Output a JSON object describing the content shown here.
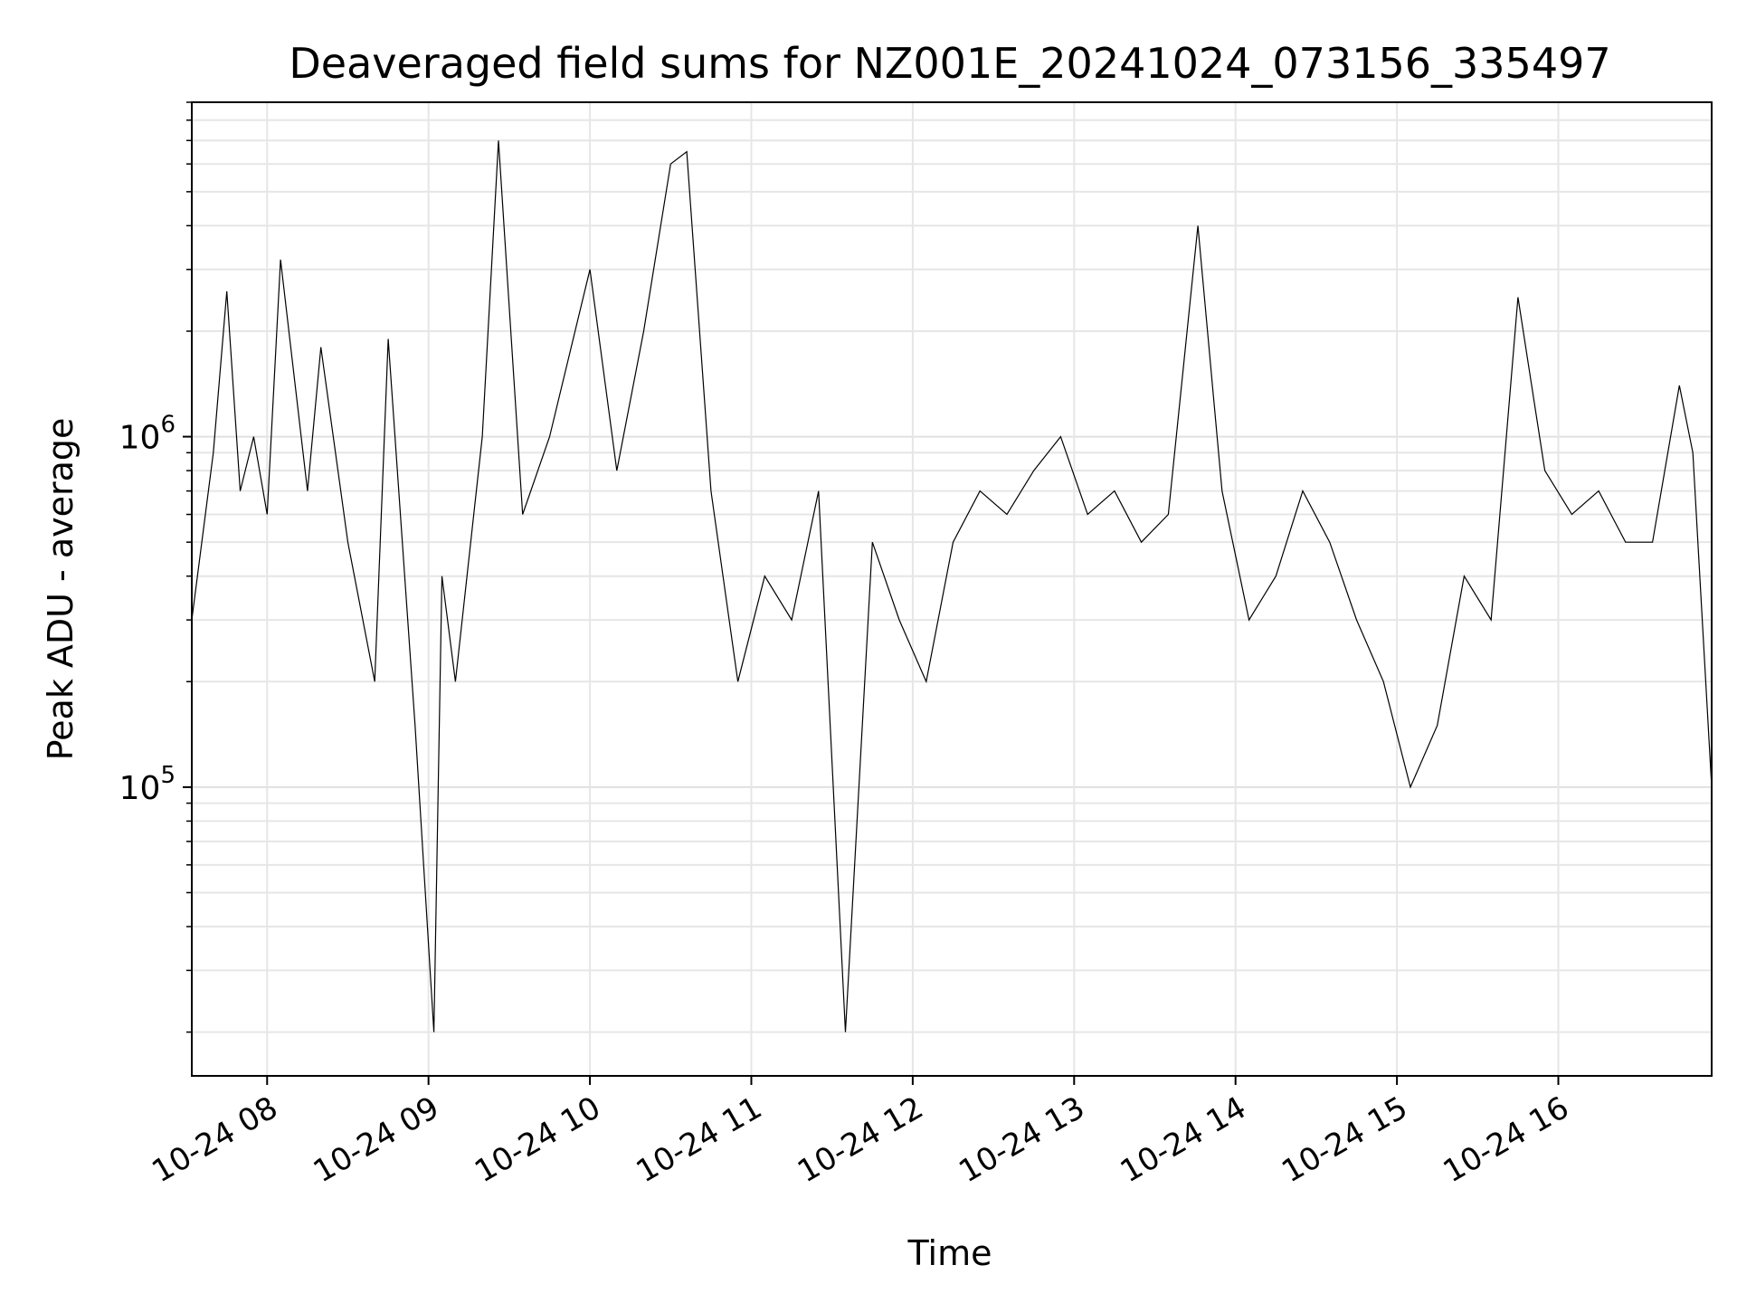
{
  "chart_data": {
    "type": "line",
    "title": "Deaveraged field sums for NZ001E_20241024_073156_335497",
    "xlabel": "Time",
    "ylabel": "Peak ADU - average",
    "yscale": "log",
    "ylim": [
      15000,
      9000000
    ],
    "xlim": [
      "2024-10-24T07:32",
      "2024-10-24T16:57"
    ],
    "grid": true,
    "line_color": "#000000",
    "x_ticks": [
      {
        "t": "2024-10-24T08:00",
        "label": "10-24 08"
      },
      {
        "t": "2024-10-24T09:00",
        "label": "10-24 09"
      },
      {
        "t": "2024-10-24T10:00",
        "label": "10-24 10"
      },
      {
        "t": "2024-10-24T11:00",
        "label": "10-24 11"
      },
      {
        "t": "2024-10-24T12:00",
        "label": "10-24 12"
      },
      {
        "t": "2024-10-24T13:00",
        "label": "10-24 13"
      },
      {
        "t": "2024-10-24T14:00",
        "label": "10-24 14"
      },
      {
        "t": "2024-10-24T15:00",
        "label": "10-24 15"
      },
      {
        "t": "2024-10-24T16:00",
        "label": "10-24 16"
      }
    ],
    "y_ticks": [
      {
        "value": 100000,
        "base": "10",
        "exp": "5"
      },
      {
        "value": 1000000,
        "base": "10",
        "exp": "6"
      }
    ],
    "series": [
      {
        "x": [
          "2024-10-24T07:32",
          "2024-10-24T07:40",
          "2024-10-24T07:45",
          "2024-10-24T07:50",
          "2024-10-24T07:55",
          "2024-10-24T08:00",
          "2024-10-24T08:05",
          "2024-10-24T08:15",
          "2024-10-24T08:20",
          "2024-10-24T08:30",
          "2024-10-24T08:40",
          "2024-10-24T08:45",
          "2024-10-24T08:55",
          "2024-10-24T09:02",
          "2024-10-24T09:05",
          "2024-10-24T09:10",
          "2024-10-24T09:20",
          "2024-10-24T09:26",
          "2024-10-24T09:35",
          "2024-10-24T09:45",
          "2024-10-24T10:00",
          "2024-10-24T10:10",
          "2024-10-24T10:20",
          "2024-10-24T10:30",
          "2024-10-24T10:36",
          "2024-10-24T10:45",
          "2024-10-24T10:55",
          "2024-10-24T11:05",
          "2024-10-24T11:15",
          "2024-10-24T11:25",
          "2024-10-24T11:35",
          "2024-10-24T11:45",
          "2024-10-24T11:55",
          "2024-10-24T12:05",
          "2024-10-24T12:15",
          "2024-10-24T12:25",
          "2024-10-24T12:35",
          "2024-10-24T12:45",
          "2024-10-24T12:55",
          "2024-10-24T13:05",
          "2024-10-24T13:15",
          "2024-10-24T13:25",
          "2024-10-24T13:35",
          "2024-10-24T13:46",
          "2024-10-24T13:55",
          "2024-10-24T14:05",
          "2024-10-24T14:15",
          "2024-10-24T14:25",
          "2024-10-24T14:35",
          "2024-10-24T14:45",
          "2024-10-24T14:55",
          "2024-10-24T15:05",
          "2024-10-24T15:15",
          "2024-10-24T15:25",
          "2024-10-24T15:35",
          "2024-10-24T15:45",
          "2024-10-24T15:55",
          "2024-10-24T16:05",
          "2024-10-24T16:15",
          "2024-10-24T16:25",
          "2024-10-24T16:35",
          "2024-10-24T16:45",
          "2024-10-24T16:50",
          "2024-10-24T16:57"
        ],
        "y": [
          300000,
          900000,
          2600000,
          700000,
          1000000,
          600000,
          3200000,
          700000,
          1800000,
          500000,
          200000,
          1900000,
          150000,
          20000,
          400000,
          200000,
          1000000,
          7000000,
          600000,
          1000000,
          3000000,
          800000,
          2000000,
          6000000,
          6500000,
          700000,
          200000,
          400000,
          300000,
          700000,
          20000,
          500000,
          300000,
          200000,
          500000,
          700000,
          600000,
          800000,
          1000000,
          600000,
          700000,
          500000,
          600000,
          4000000,
          700000,
          300000,
          400000,
          700000,
          500000,
          300000,
          200000,
          100000,
          150000,
          400000,
          300000,
          2500000,
          800000,
          600000,
          700000,
          500000,
          500000,
          1400000,
          900000,
          100000
        ]
      }
    ]
  }
}
